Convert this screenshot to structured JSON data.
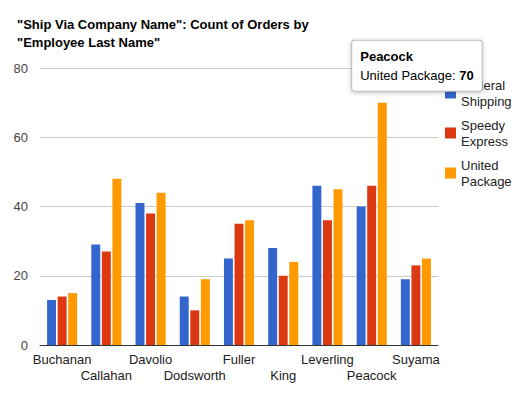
{
  "chart_data": {
    "type": "bar",
    "title": "\"Ship Via Company Name\": Count of Orders by \"Employee Last Name\"",
    "categories": [
      "Buchanan",
      "Callahan",
      "Davolio",
      "Dodsworth",
      "Fuller",
      "King",
      "Leverling",
      "Peacock",
      "Suyama"
    ],
    "series": [
      {
        "name": "Federal Shipping",
        "color": "#3366cc",
        "values": [
          13,
          29,
          41,
          14,
          25,
          28,
          46,
          40,
          19
        ]
      },
      {
        "name": "Speedy Express",
        "color": "#dc3912",
        "values": [
          14,
          27,
          38,
          10,
          35,
          20,
          36,
          46,
          23
        ]
      },
      {
        "name": "United Package",
        "color": "#ff9900",
        "values": [
          15,
          48,
          44,
          19,
          36,
          24,
          45,
          70,
          25
        ]
      }
    ],
    "ylim": [
      0,
      80
    ],
    "yticks": [
      0,
      20,
      40,
      60,
      80
    ],
    "grid": true,
    "legend": "right",
    "annotations": [
      {
        "category": "Peacock",
        "series": "United Package",
        "title": "Peacock",
        "text": "United Package: 70"
      }
    ]
  }
}
